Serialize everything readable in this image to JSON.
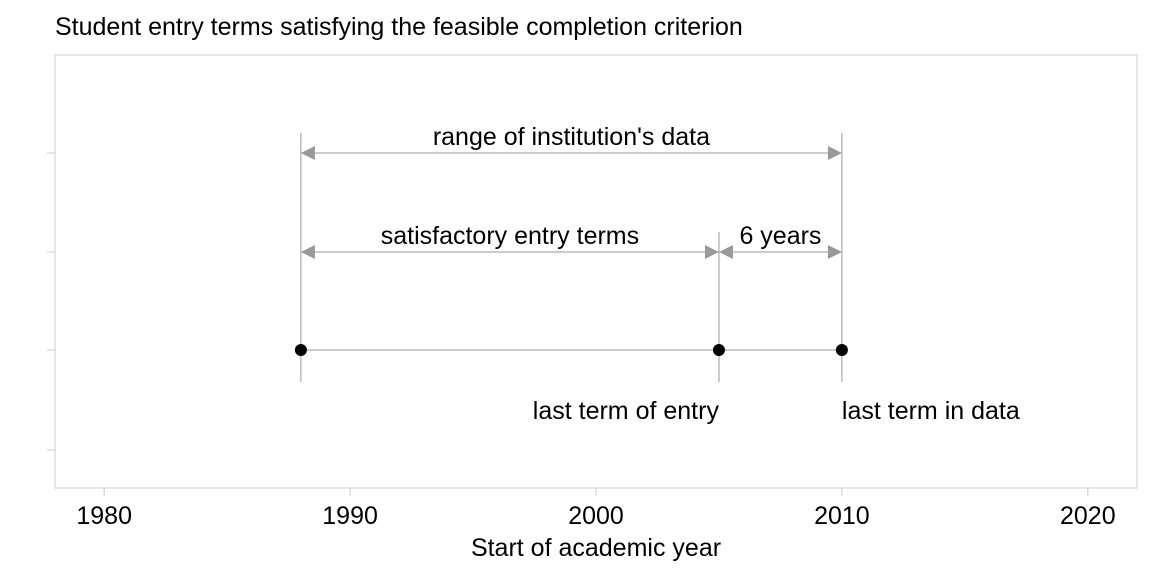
{
  "chart_data": {
    "type": "diagram",
    "title": "Student entry terms satisfying the feasible completion criterion",
    "xlabel": "Start of academic year",
    "xlim": [
      1978,
      2022
    ],
    "xticks": [
      "1980",
      "1990",
      "2000",
      "2010",
      "2020"
    ],
    "xtick_values": [
      1980,
      1990,
      2000,
      2010,
      2020
    ],
    "range_start": 1988,
    "last_entry_term": 2005,
    "last_data_term": 2010,
    "points": [
      1988,
      2005,
      2010
    ],
    "annotations": {
      "data_range": "range of institution's data",
      "satisfactory": "satisfactory entry terms",
      "gap": "6 years",
      "last_entry": "last term of entry",
      "last_data": "last term in data"
    },
    "colors": {
      "guide": "#999999",
      "frame": "#cccccc",
      "point": "#000000"
    }
  }
}
